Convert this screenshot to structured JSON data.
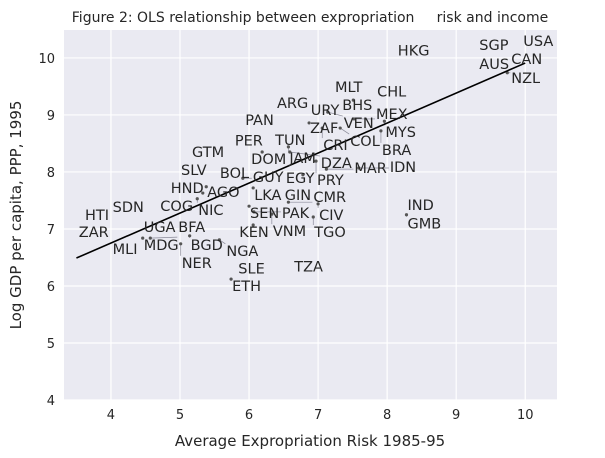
{
  "chart_data": {
    "type": "scatter",
    "title": "Figure 2: OLS relationship between expropriation     risk and income",
    "xlabel": "Average Expropriation Risk 1985-95",
    "ylabel": "Log GDP per capita, PPP, 1995",
    "xlim": [
      3.32,
      10.46
    ],
    "ylim": [
      4.0,
      10.49
    ],
    "xticks": [
      "4",
      "5",
      "6",
      "7",
      "8",
      "9",
      "10"
    ],
    "yticks": [
      "4",
      "5",
      "6",
      "7",
      "8",
      "9",
      "10"
    ],
    "grid": true,
    "background": "#EAEAF2",
    "markers": "text-labels",
    "fit_line": {
      "x": [
        3.5,
        10.0
      ],
      "y": [
        6.49,
        9.91
      ],
      "color": "#000000"
    },
    "points": [
      {
        "label": "HKG",
        "x": 8.14,
        "y": 10.04
      },
      {
        "label": "SGP",
        "x": 9.32,
        "y": 10.14
      },
      {
        "label": "USA",
        "x": 10.0,
        "y": 10.21
      },
      {
        "label": "CAN",
        "x": 9.74,
        "y": 9.96
      },
      {
        "label": "AUS",
        "x": 9.32,
        "y": 9.88
      },
      {
        "label": "NZL",
        "x": 9.74,
        "y": 9.74
      },
      {
        "label": "MLT",
        "x": 7.23,
        "y": 9.4
      },
      {
        "label": "CHL",
        "x": 7.84,
        "y": 9.32
      },
      {
        "label": "BHS",
        "x": 7.51,
        "y": 9.26
      },
      {
        "label": "ARG",
        "x": 6.39,
        "y": 9.12
      },
      {
        "label": "URY",
        "x": 7.01,
        "y": 9.0
      },
      {
        "label": "VEN",
        "x": 7.14,
        "y": 9.05
      },
      {
        "label": "ZAF",
        "x": 6.87,
        "y": 8.86
      },
      {
        "label": "MEX",
        "x": 7.52,
        "y": 8.93
      },
      {
        "label": "MYS",
        "x": 7.96,
        "y": 8.89
      },
      {
        "label": "CRI",
        "x": 7.06,
        "y": 8.77
      },
      {
        "label": "COL",
        "x": 7.32,
        "y": 8.77
      },
      {
        "label": "BRA",
        "x": 7.91,
        "y": 8.72
      },
      {
        "label": "PAN",
        "x": 5.93,
        "y": 8.82
      },
      {
        "label": "TUN",
        "x": 6.45,
        "y": 8.47
      },
      {
        "label": "JAM",
        "x": 6.57,
        "y": 8.44
      },
      {
        "label": "DOM",
        "x": 6.19,
        "y": 8.35
      },
      {
        "label": "DZA",
        "x": 6.59,
        "y": 8.35
      },
      {
        "label": "PER",
        "x": 5.78,
        "y": 8.39
      },
      {
        "label": "GTM",
        "x": 5.16,
        "y": 8.26
      },
      {
        "label": "PRY",
        "x": 6.97,
        "y": 8.19
      },
      {
        "label": "MAR",
        "x": 7.12,
        "y": 8.05
      },
      {
        "label": "IDN",
        "x": 7.59,
        "y": 8.07
      },
      {
        "label": "EGY",
        "x": 6.78,
        "y": 7.95
      },
      {
        "label": "SLV",
        "x": 5.0,
        "y": 7.95
      },
      {
        "label": "BOL",
        "x": 5.65,
        "y": 7.89
      },
      {
        "label": "GUY",
        "x": 5.91,
        "y": 7.89
      },
      {
        "label": "AGO",
        "x": 5.38,
        "y": 7.74
      },
      {
        "label": "HND",
        "x": 5.33,
        "y": 7.63
      },
      {
        "label": "NIC",
        "x": 5.25,
        "y": 7.53
      },
      {
        "label": "LKA",
        "x": 6.06,
        "y": 7.72
      },
      {
        "label": "SEN",
        "x": 6.0,
        "y": 7.4
      },
      {
        "label": "PAK",
        "x": 6.07,
        "y": 7.3
      },
      {
        "label": "GIN",
        "x": 6.46,
        "y": 7.47
      },
      {
        "label": "CMR",
        "x": 6.57,
        "y": 7.47
      },
      {
        "label": "VNM",
        "x": 6.33,
        "y": 7.26
      },
      {
        "label": "CIV",
        "x": 7.0,
        "y": 7.44
      },
      {
        "label": "TGO",
        "x": 6.93,
        "y": 7.21
      },
      {
        "label": "KEN",
        "x": 6.06,
        "y": 7.07
      },
      {
        "label": "IND",
        "x": 8.28,
        "y": 7.33
      },
      {
        "label": "GMB",
        "x": 8.28,
        "y": 7.25
      },
      {
        "label": "COG",
        "x": 4.7,
        "y": 7.42
      },
      {
        "label": "SDN",
        "x": 4.01,
        "y": 7.3
      },
      {
        "label": "HTI",
        "x": 3.74,
        "y": 7.16
      },
      {
        "label": "ZAR",
        "x": 3.52,
        "y": 6.86
      },
      {
        "label": "UGA",
        "x": 4.46,
        "y": 6.95
      },
      {
        "label": "MDG",
        "x": 4.46,
        "y": 6.84
      },
      {
        "label": "BFA",
        "x": 4.57,
        "y": 6.84
      },
      {
        "label": "MLI",
        "x": 4.01,
        "y": 6.56
      },
      {
        "label": "BGD",
        "x": 5.14,
        "y": 6.88
      },
      {
        "label": "NER",
        "x": 5.01,
        "y": 6.74
      },
      {
        "label": "NGA",
        "x": 5.57,
        "y": 6.81
      },
      {
        "label": "SLE",
        "x": 5.83,
        "y": 6.25
      },
      {
        "label": "ETH",
        "x": 5.74,
        "y": 6.12
      },
      {
        "label": "TZA",
        "x": 6.64,
        "y": 6.25
      }
    ]
  }
}
